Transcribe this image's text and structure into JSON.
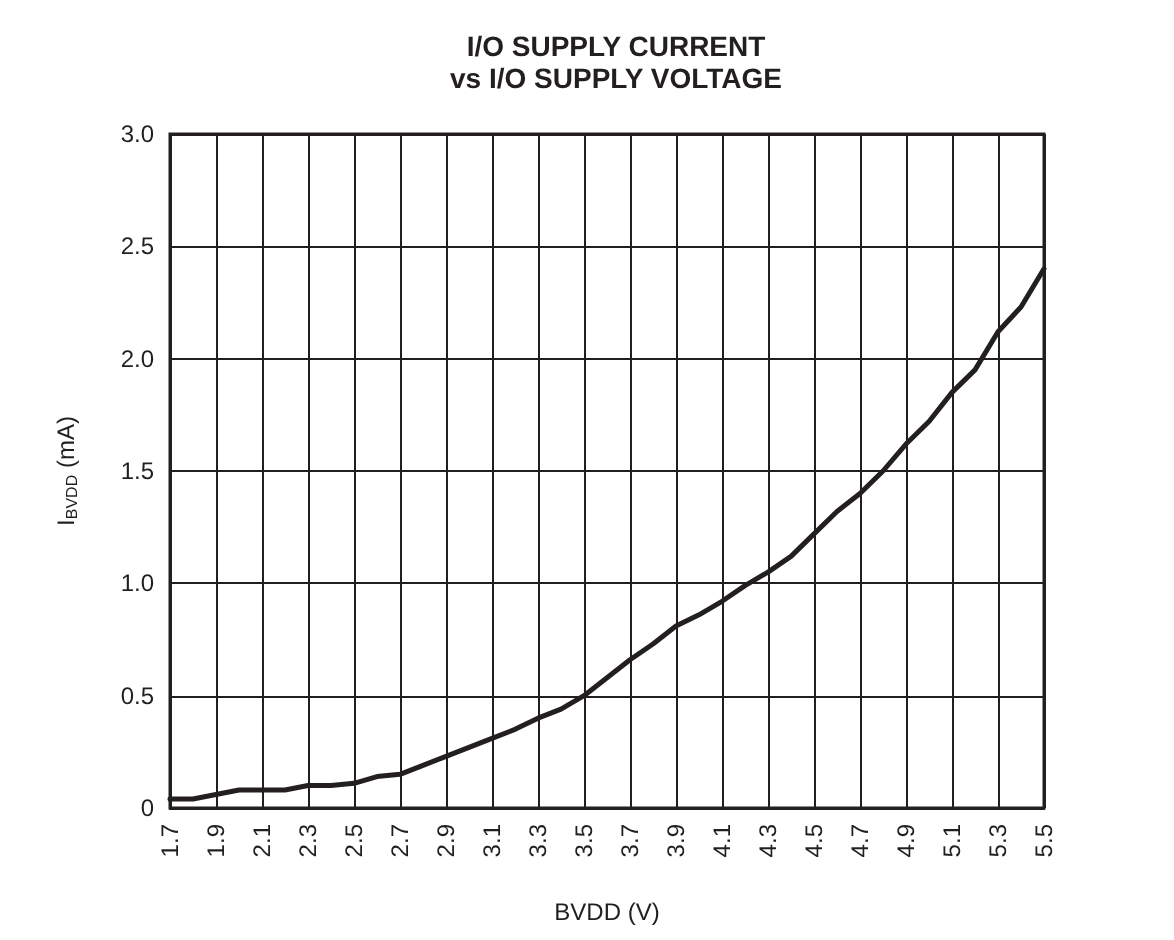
{
  "chart_data": {
    "type": "line",
    "title": "I/O SUPPLY CURRENT\nvs I/O SUPPLY VOLTAGE",
    "xlabel": "BVDD (V)",
    "ylabel": "I$_{BVDD}$ (mA)",
    "x": [
      1.7,
      1.8,
      1.9,
      2.0,
      2.1,
      2.2,
      2.3,
      2.4,
      2.5,
      2.6,
      2.7,
      2.8,
      2.9,
      3.0,
      3.1,
      3.2,
      3.3,
      3.4,
      3.5,
      3.6,
      3.7,
      3.8,
      3.9,
      4.0,
      4.1,
      4.2,
      4.3,
      4.4,
      4.5,
      4.6,
      4.7,
      4.8,
      4.9,
      5.0,
      5.1,
      5.2,
      5.3,
      5.4,
      5.5
    ],
    "series": [
      {
        "color": "#231f20",
        "values": [
          0.04,
          0.04,
          0.06,
          0.08,
          0.08,
          0.08,
          0.1,
          0.1,
          0.11,
          0.14,
          0.15,
          0.19,
          0.23,
          0.27,
          0.31,
          0.35,
          0.4,
          0.44,
          0.5,
          0.58,
          0.66,
          0.73,
          0.81,
          0.86,
          0.92,
          0.99,
          1.05,
          1.12,
          1.22,
          1.32,
          1.4,
          1.5,
          1.62,
          1.72,
          1.85,
          1.95,
          2.12,
          2.23,
          2.4
        ]
      }
    ],
    "xlim": [
      1.7,
      5.5
    ],
    "xticks": [
      1.7,
      1.9,
      2.1,
      2.3,
      2.5,
      2.7,
      2.9,
      3.1,
      3.3,
      3.5,
      3.7,
      3.9,
      4.1,
      4.3,
      4.5,
      4.7,
      4.9,
      5.1,
      5.3,
      5.5
    ],
    "ylim": [
      0,
      3.0
    ],
    "yticks": [
      0,
      0.5,
      {
        "value": 1,
        "label": "1.0"
      },
      1.5,
      {
        "value": 2,
        "label": "2.0"
      },
      2.5,
      {
        "value": 3,
        "label": "3.0"
      }
    ],
    "grid": true,
    "marker": "none",
    "line_style": "solid"
  }
}
